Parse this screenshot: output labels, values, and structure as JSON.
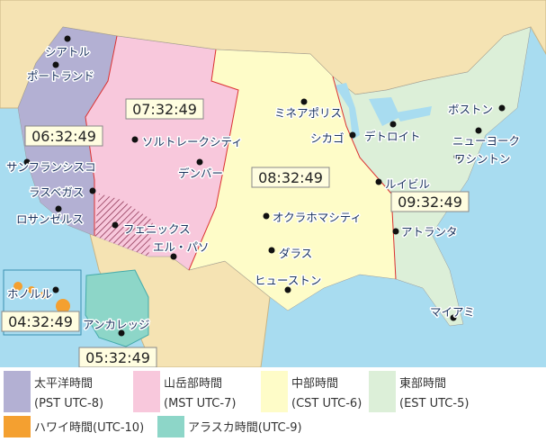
{
  "map": {
    "time_labels": [
      "07:32:49",
      "06:32:49",
      "08:32:49",
      "09:32:49",
      "04:32:49",
      "05:32:49"
    ],
    "cities": [
      "シアトル",
      "ポートランド",
      "ソルトレークシティ",
      "デンバー",
      "サンフランシスコ",
      "ラスベガス",
      "ロサンゼルス",
      "フェニックス",
      "エル・パソ",
      "ミネアポリス",
      "シカゴ",
      "デトロイト",
      "ボストン",
      "ニューヨーク",
      "ワシントン",
      "ルイビル",
      "アトランタ",
      "オクラホマシティ",
      "ダラス",
      "ヒューストン",
      "マイアミ",
      "ホノルル",
      "アンカレッジ"
    ],
    "legend": [
      {
        "name": "太平洋時間",
        "detail": "(PST UTC-8)",
        "color": "#b3b0d3"
      },
      {
        "name": "山岳部時間",
        "detail": "(MST UTC-7)",
        "color": "#f8c8dc"
      },
      {
        "name": "中部時間",
        "detail": "(CST UTC-6)",
        "color": "#fefcc8"
      },
      {
        "name": "東部時間",
        "detail": "(EST UTC-5)",
        "color": "#dcefd8"
      },
      {
        "name": "ハワイ時間(UTC-10)",
        "color": "#f4a030"
      },
      {
        "name": "アラスカ時間(UTC-9)",
        "color": "#8dd6c8"
      }
    ]
  }
}
